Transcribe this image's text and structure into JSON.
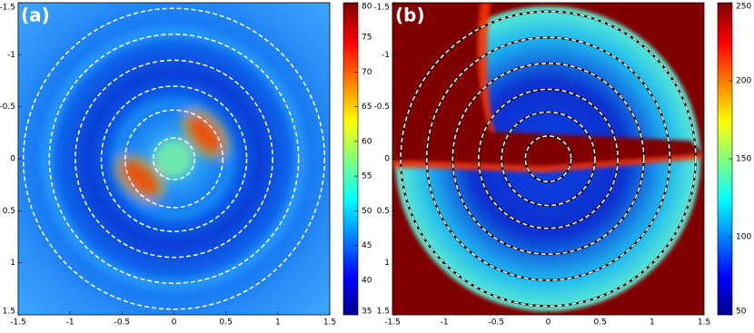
{
  "chart_data": [
    {
      "type": "heatmap",
      "label": "(a)",
      "colormap": "jet",
      "xlim": [
        -1.5,
        1.5
      ],
      "ylim": [
        -1.5,
        1.5
      ],
      "y_inverted": true,
      "xticks": [
        -1.5,
        -1,
        -0.5,
        0,
        0.5,
        1,
        1.5
      ],
      "yticks": [
        -1.5,
        -1,
        -0.5,
        0,
        0.5,
        1,
        1.5
      ],
      "clim": [
        35,
        80
      ],
      "cticks": [
        35,
        40,
        45,
        50,
        55,
        60,
        65,
        70,
        75,
        80
      ],
      "circles": [
        0.2,
        0.47,
        0.7,
        0.95,
        1.2,
        1.45
      ],
      "circle_color": "#ffffff"
    },
    {
      "type": "heatmap",
      "label": "(b)",
      "colormap": "jet",
      "xlim": [
        -1.5,
        1.5
      ],
      "ylim": [
        -1.5,
        1.5
      ],
      "y_inverted": true,
      "xticks": [
        -1.5,
        -1,
        -0.5,
        0,
        0.5,
        1,
        1.5
      ],
      "yticks": [
        -1.5,
        -1,
        -0.5,
        0,
        0.5,
        1,
        1.5
      ],
      "clim": [
        50,
        250
      ],
      "cticks": [
        50,
        100,
        150,
        200,
        250
      ],
      "circles": [
        0.22,
        0.45,
        0.67,
        0.92,
        1.17,
        1.42
      ],
      "circle_color": "#000000"
    }
  ]
}
